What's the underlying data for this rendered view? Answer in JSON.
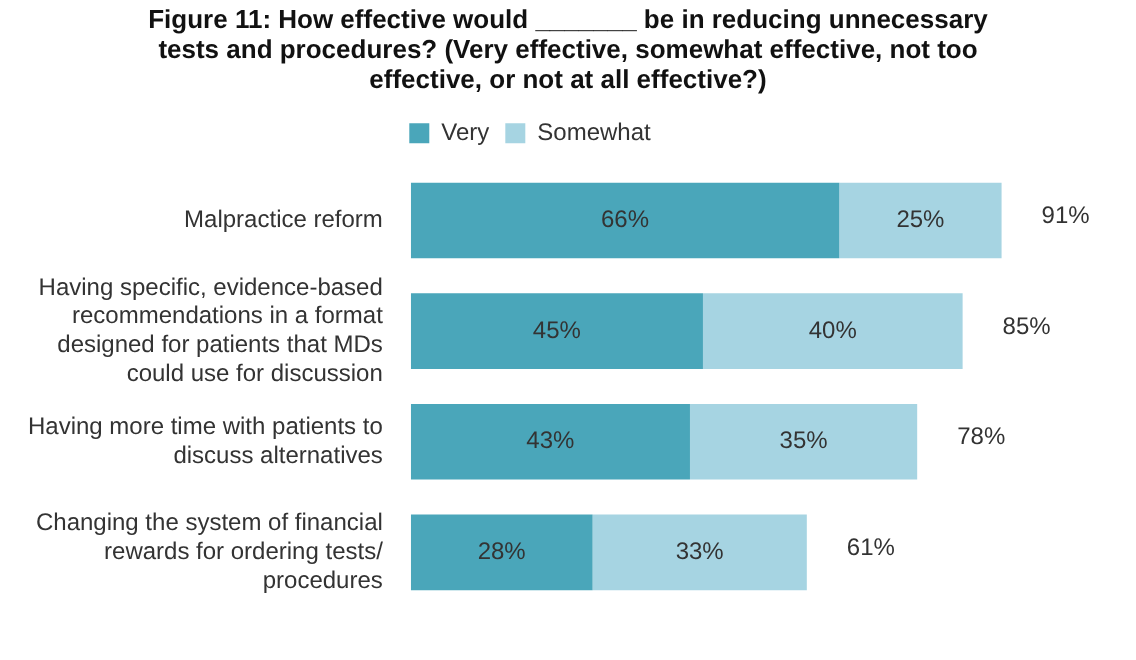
{
  "chart_data": {
    "type": "bar",
    "orientation": "horizontal",
    "stacked": true,
    "title": "Figure 11: How effective would _______ be in reducing unnecessary tests and procedures? (Very effective, somewhat effective, not too effective, or not at all effective?)",
    "categories": [
      "Malpractice reform",
      "Having specific, evidence-based recommendations in a format designed for patients that MDs could use for discussion",
      "Having more time with patients to discuss alternatives",
      "Changing the system of financial rewards for ordering tests/ procedures"
    ],
    "series": [
      {
        "name": "Very",
        "color": "#4aa6ba",
        "values": [
          66,
          45,
          43,
          28
        ],
        "value_labels": [
          "66%",
          "45%",
          "43%",
          "28%"
        ]
      },
      {
        "name": "Somewhat",
        "color": "#a6d4e2",
        "values": [
          25,
          40,
          35,
          33
        ],
        "value_labels": [
          "25%",
          "40%",
          "35%",
          "33%"
        ]
      }
    ],
    "totals": [
      "91%",
      "85%",
      "78%",
      "61%"
    ],
    "legend": "top",
    "grid": false
  }
}
